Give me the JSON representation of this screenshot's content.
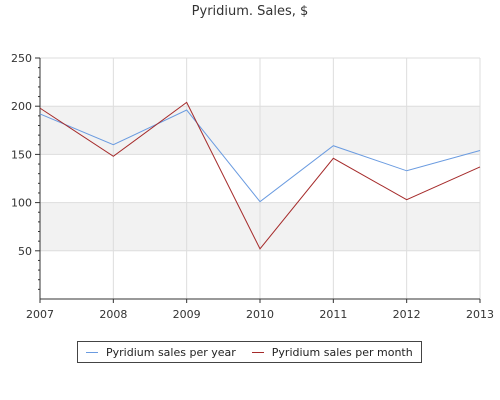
{
  "chart_data": {
    "type": "line",
    "title": "Pyridium. Sales, $",
    "xlabel": "",
    "ylabel": "",
    "categories": [
      "2007",
      "2008",
      "2009",
      "2010",
      "2011",
      "2012",
      "2013"
    ],
    "y_ticks": [
      "50",
      "100",
      "150",
      "200",
      "250"
    ],
    "ylim": [
      0,
      250
    ],
    "grid": true,
    "legend_position": "bottom",
    "series": [
      {
        "name": "Pyridium sales per year",
        "color": "#6a9be0",
        "values": [
          192,
          160,
          196,
          101,
          159,
          133,
          154
        ]
      },
      {
        "name": "Pyridium sales per month",
        "color": "#a52a2a",
        "values": [
          198,
          148,
          204,
          52,
          146,
          103,
          137
        ]
      }
    ],
    "band_color": "#f2f2f2",
    "grid_color": "#dddddd"
  }
}
